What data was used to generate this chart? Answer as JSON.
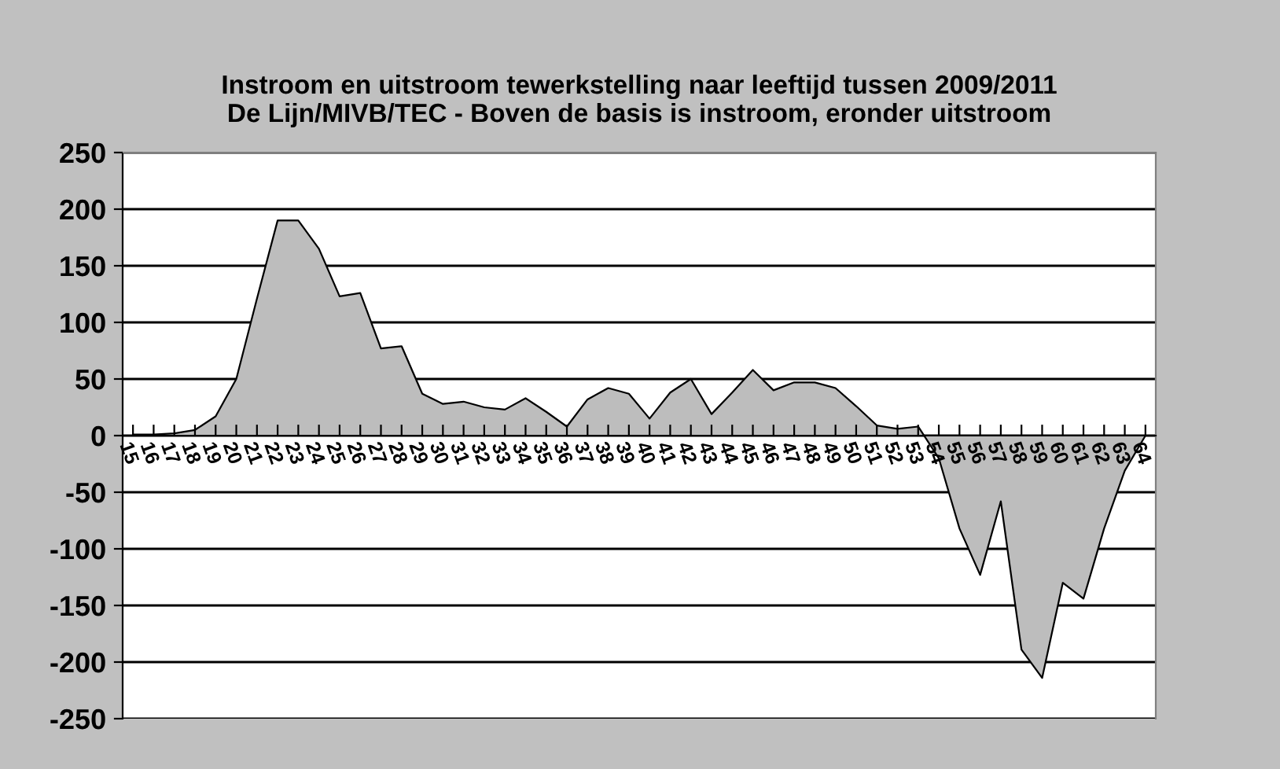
{
  "chart_data": {
    "type": "area",
    "title": "Instroom en uitstroom tewerkstelling naar leeftijd tussen 2009/2011\nDe Lijn/MIVB/TEC - Boven de basis is instroom, eronder uitstroom",
    "categories": [
      "15",
      "16",
      "17",
      "18",
      "19",
      "20",
      "21",
      "22",
      "23",
      "24",
      "25",
      "26",
      "27",
      "28",
      "29",
      "30",
      "31",
      "32",
      "33",
      "34",
      "35",
      "36",
      "37",
      "38",
      "39",
      "40",
      "41",
      "42",
      "43",
      "44",
      "45",
      "46",
      "47",
      "48",
      "49",
      "50",
      "51",
      "52",
      "53",
      "54",
      "55",
      "56",
      "57",
      "58",
      "59",
      "60",
      "61",
      "62",
      "63",
      "64"
    ],
    "series": [
      {
        "color": "#bdbdbd",
        "values": [
          1,
          1,
          2,
          5,
          17,
          50,
          121,
          190,
          190,
          165,
          123,
          126,
          77,
          79,
          37,
          28,
          30,
          25,
          23,
          33,
          21,
          8,
          32,
          42,
          37,
          15,
          38,
          50,
          19,
          38,
          58,
          40,
          47,
          47,
          42,
          26,
          9,
          6,
          8,
          -20,
          -82,
          -123,
          -58,
          -189,
          -214,
          -130,
          -144,
          -82,
          -31,
          0
        ]
      }
    ],
    "ylim": [
      -250,
      250
    ],
    "yticks": [
      -250,
      -200,
      -150,
      -100,
      -50,
      0,
      50,
      100,
      150,
      200,
      250
    ],
    "grid": "y"
  }
}
